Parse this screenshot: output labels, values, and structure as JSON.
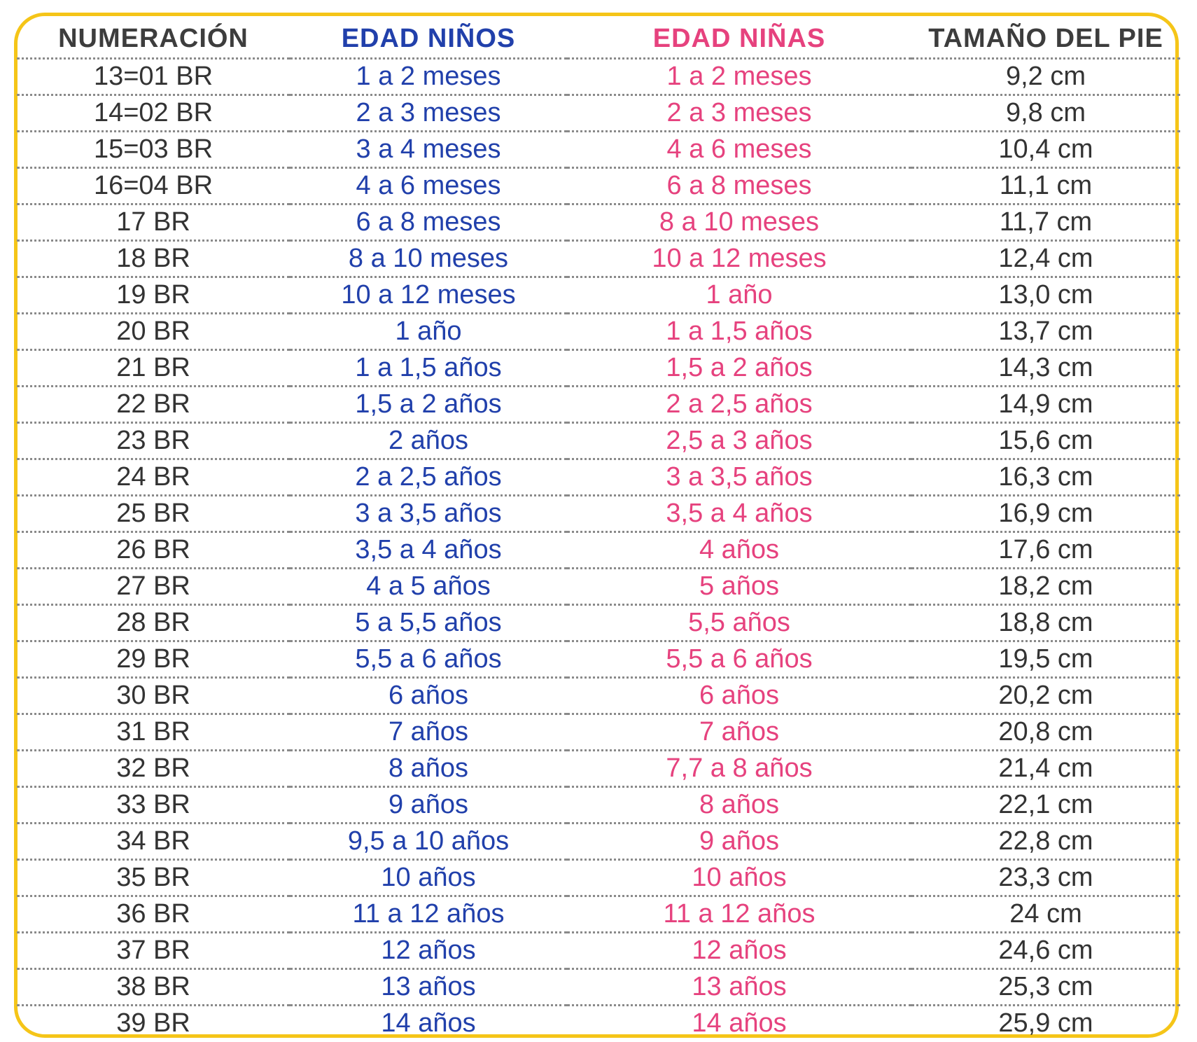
{
  "colors": {
    "border": "#f5c518",
    "boys": "#2140ab",
    "girls": "#e6427e",
    "neutral": "#3d3d3d",
    "divider": "#8a8a8a"
  },
  "table": {
    "headers": {
      "numeracion": "NUMERACIÓN",
      "edad_ninos": "EDAD NIÑOS",
      "edad_ninas": "EDAD NIÑAS",
      "tamano_pie": "TAMAÑO DEL PIE"
    },
    "rows": [
      {
        "num": "13=01 BR",
        "boys": "1 a 2 meses",
        "girls": "1 a 2 meses",
        "foot": "9,2 cm"
      },
      {
        "num": "14=02 BR",
        "boys": "2 a 3 meses",
        "girls": "2 a 3 meses",
        "foot": "9,8 cm"
      },
      {
        "num": "15=03 BR",
        "boys": "3 a 4 meses",
        "girls": "4 a 6 meses",
        "foot": "10,4 cm"
      },
      {
        "num": "16=04 BR",
        "boys": "4 a 6 meses",
        "girls": "6 a 8 meses",
        "foot": "11,1 cm"
      },
      {
        "num": "17 BR",
        "boys": "6 a 8 meses",
        "girls": "8 a 10 meses",
        "foot": "11,7 cm"
      },
      {
        "num": "18 BR",
        "boys": "8 a 10 meses",
        "girls": "10 a 12 meses",
        "foot": "12,4 cm"
      },
      {
        "num": "19 BR",
        "boys": "10 a 12 meses",
        "girls": "1 año",
        "foot": "13,0 cm"
      },
      {
        "num": "20 BR",
        "boys": "1 año",
        "girls": "1 a 1,5 años",
        "foot": "13,7 cm"
      },
      {
        "num": "21 BR",
        "boys": "1 a 1,5 años",
        "girls": "1,5 a 2 años",
        "foot": "14,3 cm"
      },
      {
        "num": "22 BR",
        "boys": "1,5 a 2 años",
        "girls": "2 a 2,5 años",
        "foot": "14,9 cm"
      },
      {
        "num": "23 BR",
        "boys": "2 años",
        "girls": "2,5 a 3 años",
        "foot": "15,6 cm"
      },
      {
        "num": "24 BR",
        "boys": "2 a 2,5 años",
        "girls": "3 a 3,5 años",
        "foot": "16,3 cm"
      },
      {
        "num": "25 BR",
        "boys": "3 a 3,5 años",
        "girls": "3,5 a 4 años",
        "foot": "16,9 cm"
      },
      {
        "num": "26 BR",
        "boys": "3,5 a 4 años",
        "girls": "4 años",
        "foot": "17,6 cm"
      },
      {
        "num": "27 BR",
        "boys": "4 a 5 años",
        "girls": "5 años",
        "foot": "18,2 cm"
      },
      {
        "num": "28 BR",
        "boys": "5 a 5,5 años",
        "girls": "5,5 años",
        "foot": "18,8 cm"
      },
      {
        "num": "29 BR",
        "boys": "5,5 a 6 años",
        "girls": "5,5 a 6 años",
        "foot": "19,5 cm"
      },
      {
        "num": "30 BR",
        "boys": "6 años",
        "girls": "6 años",
        "foot": "20,2 cm"
      },
      {
        "num": "31 BR",
        "boys": "7 años",
        "girls": "7 años",
        "foot": "20,8 cm"
      },
      {
        "num": "32 BR",
        "boys": "8 años",
        "girls": "7,7 a 8 años",
        "foot": "21,4 cm"
      },
      {
        "num": "33 BR",
        "boys": "9 años",
        "girls": "8 años",
        "foot": "22,1 cm"
      },
      {
        "num": "34 BR",
        "boys": "9,5 a 10 años",
        "girls": "9 años",
        "foot": "22,8 cm"
      },
      {
        "num": "35 BR",
        "boys": "10 años",
        "girls": "10 años",
        "foot": "23,3 cm"
      },
      {
        "num": "36 BR",
        "boys": "11 a 12 años",
        "girls": "11 a 12 años",
        "foot": "24 cm"
      },
      {
        "num": "37 BR",
        "boys": "12 años",
        "girls": "12 años",
        "foot": "24,6 cm"
      },
      {
        "num": "38 BR",
        "boys": "13 años",
        "girls": "13 años",
        "foot": "25,3 cm"
      },
      {
        "num": "39 BR",
        "boys": "14 años",
        "girls": "14 años",
        "foot": "25,9 cm"
      }
    ]
  }
}
